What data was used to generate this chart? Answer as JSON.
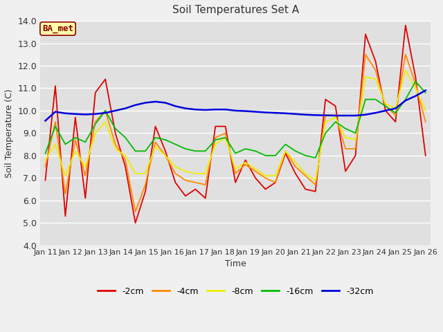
{
  "title": "Soil Temperatures Set A",
  "xlabel": "Time",
  "ylabel": "Soil Temperature (C)",
  "ylim": [
    4.0,
    14.0
  ],
  "yticks": [
    4.0,
    5.0,
    6.0,
    7.0,
    8.0,
    9.0,
    10.0,
    11.0,
    12.0,
    13.0,
    14.0
  ],
  "fig_bg": "#f0f0f0",
  "plot_bg": "#e0e0e0",
  "annotation_text": "BA_met",
  "annotation_bg": "#ffffaa",
  "annotation_border": "#8b0000",
  "annotation_text_color": "#8b0000",
  "x_labels": [
    "Jan 11",
    "Jan 12",
    "Jan 13",
    "Jan 14",
    "Jan 15",
    "Jan 16",
    "Jan 17",
    "Jan 18",
    "Jan 19",
    "Jan 20",
    "Jan 21",
    "Jan 22",
    "Jan 23",
    "Jan 24",
    "Jan 25",
    "Jan 26"
  ],
  "series": {
    "-2cm": {
      "color": "#dd0000",
      "linewidth": 1.3,
      "values": [
        6.9,
        11.1,
        5.3,
        9.7,
        6.1,
        10.8,
        11.4,
        9.0,
        7.5,
        5.0,
        6.4,
        9.3,
        8.2,
        6.8,
        6.2,
        6.5,
        6.1,
        9.3,
        9.3,
        6.8,
        7.8,
        7.0,
        6.5,
        6.8,
        8.1,
        7.2,
        6.5,
        6.4,
        10.5,
        10.2,
        7.3,
        8.0,
        13.4,
        12.2,
        10.0,
        9.5,
        13.8,
        11.5,
        8.0
      ]
    },
    "-4cm": {
      "color": "#ff8800",
      "linewidth": 1.3,
      "values": [
        7.5,
        9.5,
        6.3,
        8.7,
        7.1,
        9.5,
        10.0,
        8.5,
        7.8,
        5.5,
        6.7,
        8.6,
        8.0,
        7.2,
        6.9,
        6.8,
        6.7,
        8.8,
        9.0,
        7.2,
        7.6,
        7.3,
        7.0,
        6.8,
        8.2,
        7.5,
        7.1,
        6.7,
        9.8,
        9.8,
        8.3,
        8.3,
        12.5,
        11.8,
        10.2,
        9.8,
        12.5,
        11.2,
        9.5
      ]
    },
    "-8cm": {
      "color": "#eeee00",
      "linewidth": 1.3,
      "values": [
        7.8,
        8.5,
        7.1,
        8.2,
        7.5,
        9.0,
        9.5,
        8.3,
        8.0,
        7.2,
        7.2,
        8.4,
        8.0,
        7.5,
        7.3,
        7.2,
        7.2,
        8.5,
        8.8,
        7.4,
        7.7,
        7.4,
        7.1,
        7.1,
        8.2,
        7.7,
        7.2,
        6.9,
        9.5,
        9.7,
        8.8,
        8.7,
        11.5,
        11.4,
        10.3,
        10.1,
        11.8,
        11.0,
        10.0
      ]
    },
    "-16cm": {
      "color": "#00bb00",
      "linewidth": 1.3,
      "values": [
        8.1,
        9.3,
        8.5,
        8.8,
        8.6,
        9.4,
        10.0,
        9.2,
        8.8,
        8.2,
        8.2,
        8.8,
        8.7,
        8.5,
        8.3,
        8.2,
        8.2,
        8.7,
        8.8,
        8.1,
        8.3,
        8.2,
        8.0,
        8.0,
        8.5,
        8.2,
        8.0,
        7.9,
        9.0,
        9.5,
        9.2,
        9.0,
        10.5,
        10.5,
        10.2,
        9.9,
        10.5,
        11.3,
        10.8
      ]
    },
    "-32cm": {
      "color": "#0000dd",
      "linewidth": 1.8,
      "values": [
        9.55,
        9.95,
        9.88,
        9.85,
        9.83,
        9.85,
        9.9,
        10.0,
        10.1,
        10.25,
        10.35,
        10.4,
        10.35,
        10.2,
        10.1,
        10.05,
        10.03,
        10.05,
        10.05,
        10.0,
        9.98,
        9.95,
        9.92,
        9.9,
        9.88,
        9.85,
        9.82,
        9.8,
        9.79,
        9.78,
        9.78,
        9.78,
        9.82,
        9.9,
        10.0,
        10.1,
        10.45,
        10.65,
        10.9
      ]
    }
  },
  "legend_order": [
    "-2cm",
    "-4cm",
    "-8cm",
    "-16cm",
    "-32cm"
  ],
  "legend_colors": [
    "#dd0000",
    "#ff8800",
    "#eeee00",
    "#00bb00",
    "#0000dd"
  ]
}
